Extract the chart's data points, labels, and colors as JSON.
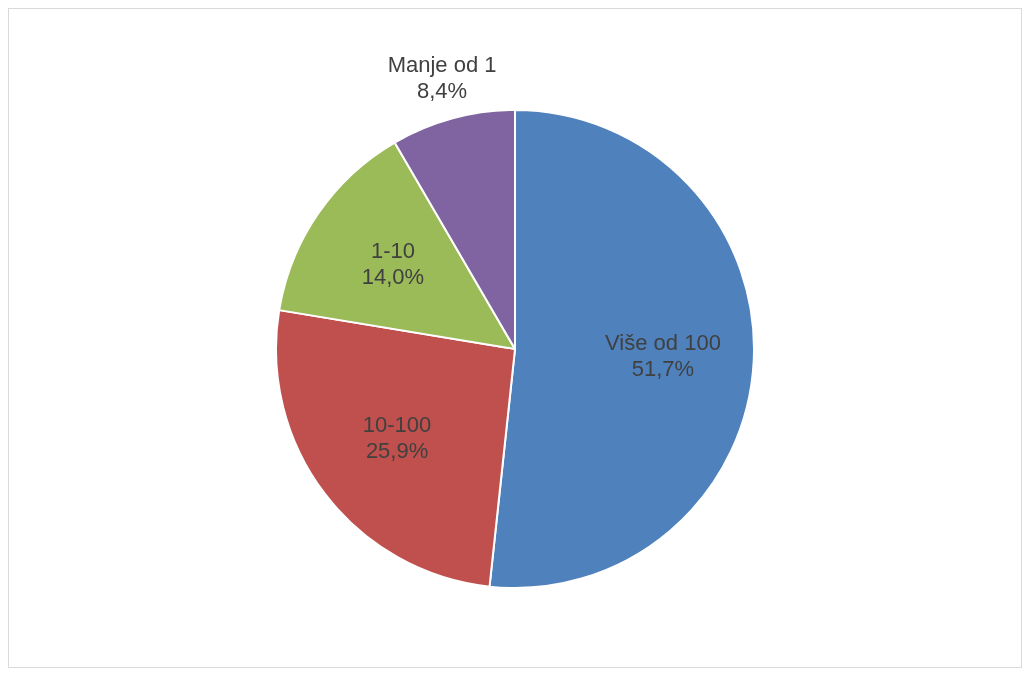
{
  "chart_data": {
    "type": "pie",
    "categories": [
      "Više od 100",
      "10-100",
      "1-10",
      "Manje od 1"
    ],
    "values": [
      51.7,
      25.9,
      14.0,
      8.4
    ],
    "colors": [
      "#4f81bd",
      "#c0504d",
      "#9bbb59",
      "#8064a2"
    ],
    "value_labels": [
      "51,7%",
      "25,9%",
      "14,0%",
      "8,4%"
    ]
  }
}
